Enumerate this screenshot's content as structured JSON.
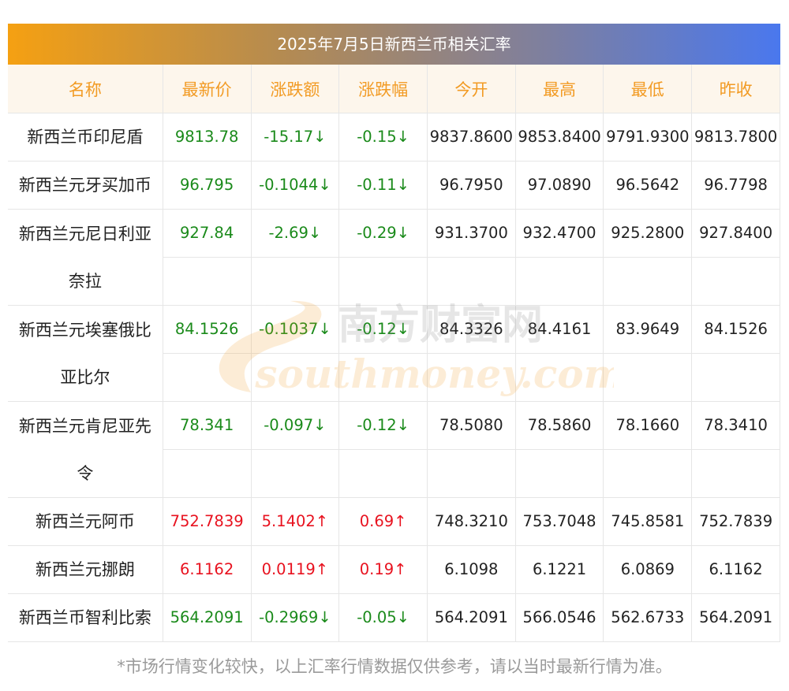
{
  "title": "2025年7月5日新西兰币相关汇率",
  "headers": [
    "名称",
    "最新价",
    "涨跌额",
    "涨跌幅",
    "今开",
    "最高",
    "最低",
    "昨收"
  ],
  "rows": [
    {
      "name": "新西兰币印尼盾",
      "latest": "9813.78",
      "change": "-15.17↓",
      "pct": "-0.15↓",
      "open": "9837.8600",
      "high": "9853.8400",
      "low": "9791.9300",
      "prev": "9813.7800",
      "dir": "down"
    },
    {
      "name": "新西兰元牙买加币",
      "latest": "96.795",
      "change": "-0.1044↓",
      "pct": "-0.11↓",
      "open": "96.7950",
      "high": "97.0890",
      "low": "96.5642",
      "prev": "96.7798",
      "dir": "down"
    },
    {
      "name": "新西兰元尼日利亚奈拉",
      "latest": "927.84",
      "change": "-2.69↓",
      "pct": "-0.29↓",
      "open": "931.3700",
      "high": "932.4700",
      "low": "925.2800",
      "prev": "927.8400",
      "dir": "down"
    },
    {
      "name": "新西兰元埃塞俄比亚比尔",
      "latest": "84.1526",
      "change": "-0.1037↓",
      "pct": "-0.12↓",
      "open": "84.3326",
      "high": "84.4161",
      "low": "83.9649",
      "prev": "84.1526",
      "dir": "down"
    },
    {
      "name": "新西兰元肯尼亚先令",
      "latest": "78.341",
      "change": "-0.097↓",
      "pct": "-0.12↓",
      "open": "78.5080",
      "high": "78.5860",
      "low": "78.1660",
      "prev": "78.3410",
      "dir": "down"
    },
    {
      "name": "新西兰元阿币",
      "latest": "752.7839",
      "change": "5.1402↑",
      "pct": "0.69↑",
      "open": "748.3210",
      "high": "753.7048",
      "low": "745.8581",
      "prev": "752.7839",
      "dir": "up"
    },
    {
      "name": "新西兰元挪朗",
      "latest": "6.1162",
      "change": "0.0119↑",
      "pct": "0.19↑",
      "open": "6.1098",
      "high": "6.1221",
      "low": "6.0869",
      "prev": "6.1162",
      "dir": "up"
    },
    {
      "name": "新西兰币智利比索",
      "latest": "564.2091",
      "change": "-0.2969↓",
      "pct": "-0.05↓",
      "open": "564.2091",
      "high": "566.0546",
      "low": "562.6733",
      "prev": "564.2091",
      "dir": "down"
    }
  ],
  "watermark": {
    "cn": "南方财富网",
    "en": "southmoney.com"
  },
  "footer": "*市场行情变化较快，以上汇率行情数据仅供参考，请以当时最新行情为准。",
  "colors": {
    "up": "#e8121f",
    "down": "#1a8a1a",
    "header_text": "#f29b24",
    "header_bg": "#fdf6ec"
  }
}
